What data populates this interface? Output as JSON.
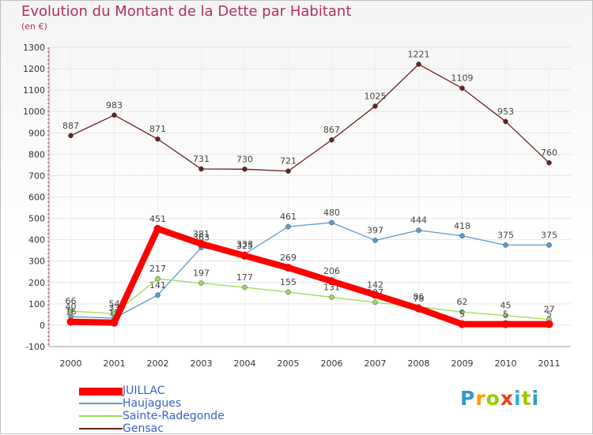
{
  "title": "Evolution du Montant de la Dette par Habitant",
  "subtitle": "(en €)",
  "logo": {
    "text": "Proxiti",
    "colors": [
      "#3399cc",
      "#ff9900",
      "#99cc00",
      "#e8431c",
      "#33aadd",
      "#99cc00",
      "#3399cc"
    ]
  },
  "chart_data": {
    "type": "line",
    "title": "Evolution du Montant de la Dette par Habitant",
    "ylabel": "(en €)",
    "xlabel": "",
    "x": [
      "2000",
      "2001",
      "2002",
      "2003",
      "2004",
      "2005",
      "2006",
      "2007",
      "2008",
      "2009",
      "2010",
      "2011"
    ],
    "ylim": [
      -100,
      1300
    ],
    "yticks": [
      -100,
      0,
      100,
      200,
      300,
      400,
      500,
      600,
      700,
      800,
      900,
      1000,
      1100,
      1200,
      1300
    ],
    "grid": true,
    "legend_position": "bottom-left",
    "series": [
      {
        "name": "Gensac",
        "color": "#6b1f1f",
        "values": [
          887,
          983,
          871,
          731,
          730,
          721,
          867,
          1025,
          1221,
          1109,
          953,
          760
        ]
      },
      {
        "name": "Haujagues",
        "color": "#5b9bd5",
        "values": [
          40,
          33,
          141,
          363,
          333,
          461,
          480,
          397,
          444,
          418,
          375,
          375
        ]
      },
      {
        "name": "Sainte-Radegonde",
        "color": "#99dd55",
        "values": [
          66,
          54,
          217,
          197,
          177,
          155,
          131,
          107,
          86,
          62,
          45,
          27
        ]
      },
      {
        "name": "JUILLAC",
        "color": "#ff0000",
        "values": [
          16,
          12,
          451,
          381,
          325,
          269,
          206,
          142,
          78,
          5,
          5,
          5
        ]
      }
    ]
  },
  "legend": [
    {
      "name": "JUILLAC",
      "color": "#ff0000"
    },
    {
      "name": "Haujagues",
      "color": "#5b9bd5"
    },
    {
      "name": "Sainte-Radegonde",
      "color": "#99dd55"
    },
    {
      "name": "Gensac",
      "color": "#6b1f1f"
    }
  ]
}
